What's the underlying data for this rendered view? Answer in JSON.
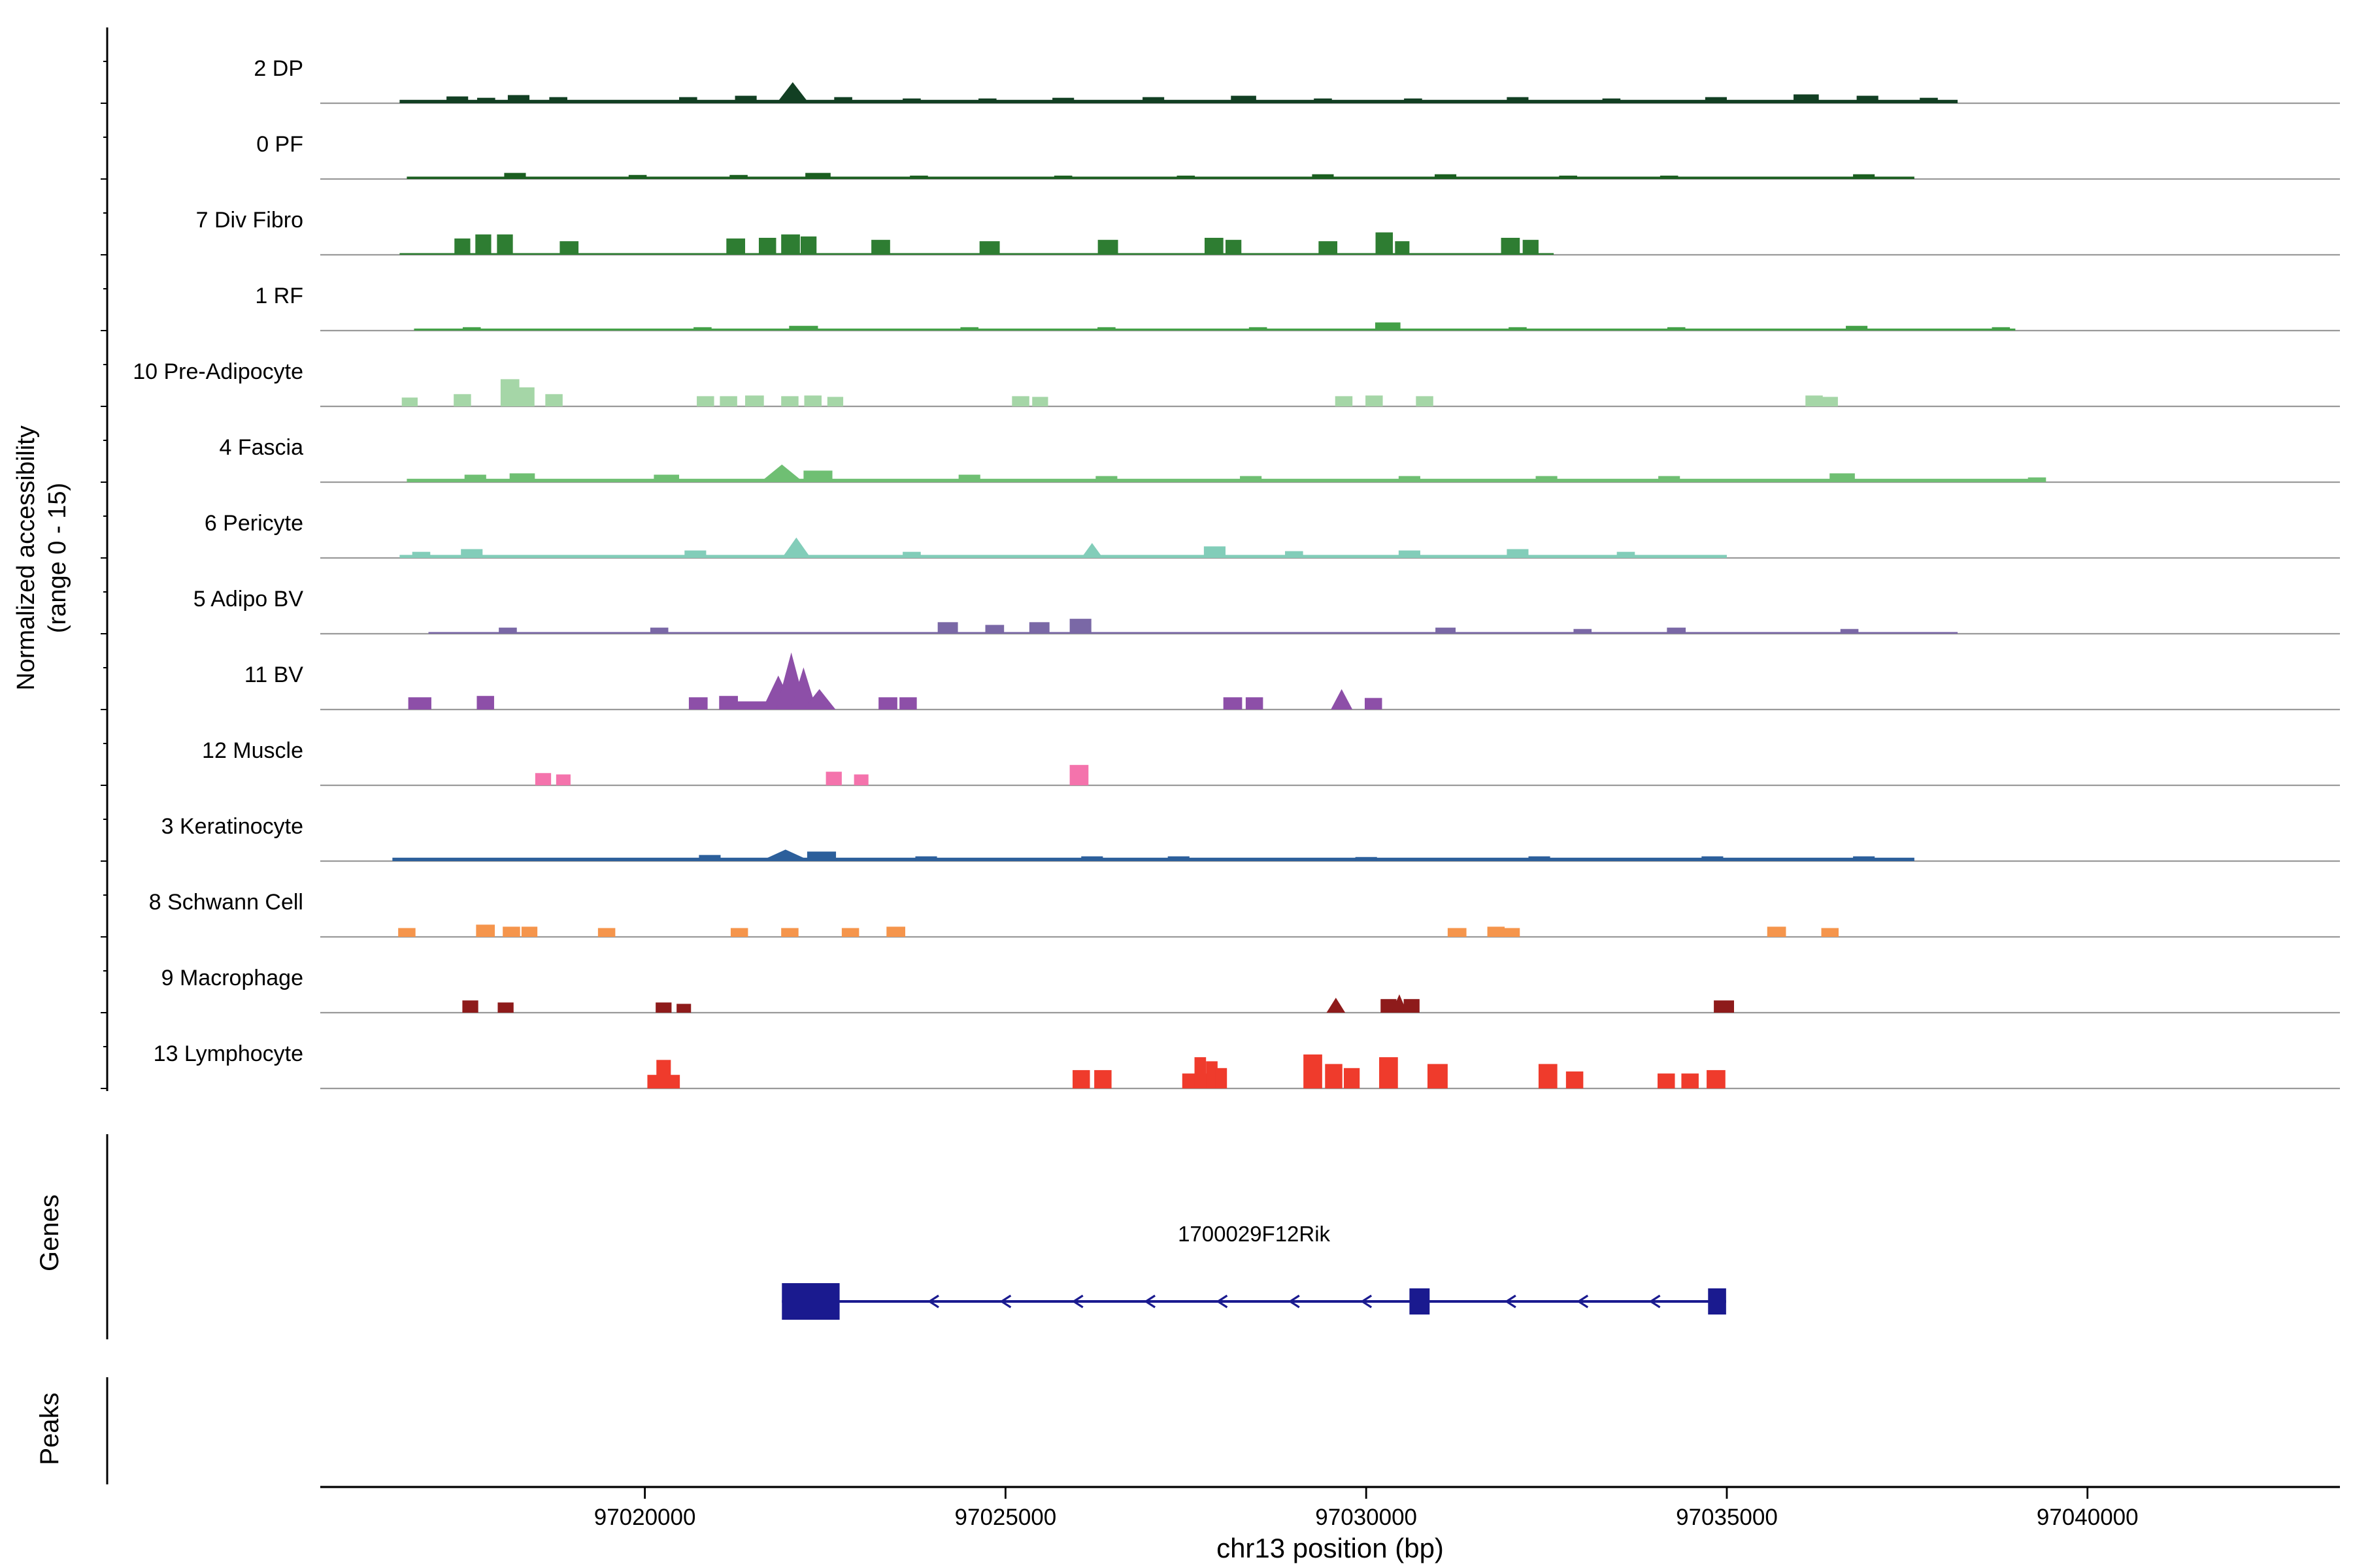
{
  "figure": {
    "y_axis_label_line1": "Normalized accessibility",
    "y_axis_label_line2": "(range 0 - 15)",
    "x_axis_label": "chr13 position (bp)",
    "genes_section_label": "Genes",
    "peaks_section_label": "Peaks"
  },
  "chart_data": {
    "type": "area",
    "title": "",
    "xlabel": "chr13 position (bp)",
    "ylabel": "Normalized accessibility (range 0 - 15)",
    "xlim": [
      97015500,
      97043500
    ],
    "xticks": [
      97020000,
      97025000,
      97030000,
      97035000,
      97040000
    ],
    "track_value_range": [
      0,
      15
    ],
    "legend_position": "left-track-labels",
    "grid": false,
    "tracks": [
      {
        "name": "2 DP",
        "color": "#123f23",
        "noise": [
          97016600,
          97038200,
          0.05
        ],
        "peaks": [
          [
            97017400,
            300,
            0.1
          ],
          [
            97017800,
            250,
            0.08
          ],
          [
            97018250,
            300,
            0.12
          ],
          [
            97018800,
            250,
            0.09
          ],
          [
            97020600,
            250,
            0.09
          ],
          [
            97021400,
            300,
            0.11
          ],
          [
            97022050,
            450,
            0.31,
            "t"
          ],
          [
            97022750,
            250,
            0.09
          ],
          [
            97023700,
            250,
            0.07
          ],
          [
            97024750,
            250,
            0.07
          ],
          [
            97025800,
            300,
            0.08
          ],
          [
            97027050,
            300,
            0.09
          ],
          [
            97028300,
            350,
            0.11
          ],
          [
            97029400,
            250,
            0.07
          ],
          [
            97030650,
            250,
            0.07
          ],
          [
            97032100,
            300,
            0.09
          ],
          [
            97033400,
            250,
            0.07
          ],
          [
            97034850,
            300,
            0.09
          ],
          [
            97036100,
            350,
            0.13
          ],
          [
            97036950,
            300,
            0.11
          ],
          [
            97037800,
            250,
            0.08
          ]
        ]
      },
      {
        "name": "0 PF",
        "color": "#1b5e20",
        "noise": [
          97016700,
          97037600,
          0.035
        ],
        "peaks": [
          [
            97018200,
            300,
            0.09
          ],
          [
            97019900,
            250,
            0.06
          ],
          [
            97021300,
            250,
            0.06
          ],
          [
            97022400,
            350,
            0.09
          ],
          [
            97023800,
            250,
            0.05
          ],
          [
            97025800,
            250,
            0.05
          ],
          [
            97027500,
            250,
            0.05
          ],
          [
            97029400,
            300,
            0.07
          ],
          [
            97031100,
            300,
            0.07
          ],
          [
            97032800,
            250,
            0.05
          ],
          [
            97034200,
            250,
            0.05
          ],
          [
            97036900,
            300,
            0.07
          ]
        ]
      },
      {
        "name": "7 Div Fibro",
        "color": "#2e7d32",
        "noise": [
          97016600,
          97032600,
          0.025
        ],
        "peaks": [
          [
            97017470,
            220,
            0.24
          ],
          [
            97017760,
            220,
            0.3
          ],
          [
            97018060,
            220,
            0.3
          ],
          [
            97018950,
            260,
            0.2
          ],
          [
            97021260,
            260,
            0.24
          ],
          [
            97021700,
            240,
            0.25
          ],
          [
            97022020,
            260,
            0.3
          ],
          [
            97022270,
            220,
            0.27
          ],
          [
            97023270,
            260,
            0.22
          ],
          [
            97024780,
            280,
            0.2
          ],
          [
            97026420,
            280,
            0.22
          ],
          [
            97027890,
            260,
            0.25
          ],
          [
            97028160,
            220,
            0.22
          ],
          [
            97029470,
            260,
            0.2
          ],
          [
            97030250,
            240,
            0.33
          ],
          [
            97030500,
            200,
            0.2
          ],
          [
            97032000,
            260,
            0.25
          ],
          [
            97032280,
            220,
            0.22
          ]
        ]
      },
      {
        "name": "1 RF",
        "color": "#43a047",
        "noise": [
          97016800,
          97039000,
          0.03
        ],
        "peaks": [
          [
            97017600,
            250,
            0.05
          ],
          [
            97020800,
            250,
            0.05
          ],
          [
            97022200,
            400,
            0.07
          ],
          [
            97024500,
            250,
            0.05
          ],
          [
            97026400,
            250,
            0.05
          ],
          [
            97028500,
            250,
            0.05
          ],
          [
            97030300,
            350,
            0.12
          ],
          [
            97032100,
            250,
            0.05
          ],
          [
            97034300,
            250,
            0.05
          ],
          [
            97036800,
            300,
            0.07
          ],
          [
            97038800,
            250,
            0.05
          ]
        ]
      },
      {
        "name": "10 Pre-Adipocyte",
        "color": "#a5d6a7",
        "noise": null,
        "peaks": [
          [
            97016740,
            220,
            0.13
          ],
          [
            97017470,
            240,
            0.18
          ],
          [
            97018130,
            260,
            0.4
          ],
          [
            97018360,
            220,
            0.28
          ],
          [
            97018740,
            240,
            0.18
          ],
          [
            97020840,
            240,
            0.15
          ],
          [
            97021160,
            240,
            0.15
          ],
          [
            97021520,
            260,
            0.16
          ],
          [
            97022010,
            240,
            0.15
          ],
          [
            97022330,
            240,
            0.16
          ],
          [
            97022640,
            220,
            0.14
          ],
          [
            97025210,
            240,
            0.15
          ],
          [
            97025480,
            220,
            0.14
          ],
          [
            97029690,
            240,
            0.15
          ],
          [
            97030110,
            240,
            0.16
          ],
          [
            97030810,
            240,
            0.15
          ],
          [
            97036210,
            240,
            0.16
          ],
          [
            97036430,
            220,
            0.14
          ]
        ]
      },
      {
        "name": "4 Fascia",
        "color": "#6fbf73",
        "noise": [
          97016700,
          97039200,
          0.05
        ],
        "peaks": [
          [
            97017650,
            300,
            0.11
          ],
          [
            97018300,
            350,
            0.13
          ],
          [
            97020300,
            350,
            0.11
          ],
          [
            97021900,
            600,
            0.26,
            "t"
          ],
          [
            97022400,
            400,
            0.17
          ],
          [
            97024500,
            300,
            0.11
          ],
          [
            97026400,
            300,
            0.09
          ],
          [
            97028400,
            300,
            0.09
          ],
          [
            97030600,
            300,
            0.09
          ],
          [
            97032500,
            300,
            0.09
          ],
          [
            97034200,
            300,
            0.09
          ],
          [
            97036600,
            350,
            0.13
          ],
          [
            97039300,
            250,
            0.07
          ]
        ]
      },
      {
        "name": "6 Pericyte",
        "color": "#82cdb9",
        "noise": [
          97016600,
          97035000,
          0.045
        ],
        "peaks": [
          [
            97016900,
            250,
            0.09
          ],
          [
            97017600,
            300,
            0.13
          ],
          [
            97020700,
            300,
            0.11
          ],
          [
            97022100,
            400,
            0.3,
            "t"
          ],
          [
            97023700,
            250,
            0.09
          ],
          [
            97026200,
            300,
            0.22,
            "t"
          ],
          [
            97027900,
            300,
            0.17
          ],
          [
            97029000,
            250,
            0.1
          ],
          [
            97030600,
            300,
            0.11
          ],
          [
            97032100,
            300,
            0.13
          ],
          [
            97033600,
            250,
            0.09
          ]
        ]
      },
      {
        "name": "5 Adipo BV",
        "color": "#7a68a6",
        "noise": [
          97017000,
          97038200,
          0.025
        ],
        "peaks": [
          [
            97018100,
            250,
            0.09
          ],
          [
            97020200,
            250,
            0.09
          ],
          [
            97024200,
            280,
            0.17
          ],
          [
            97024850,
            260,
            0.13
          ],
          [
            97025470,
            280,
            0.17
          ],
          [
            97026040,
            300,
            0.22
          ],
          [
            97031100,
            280,
            0.09
          ],
          [
            97033000,
            250,
            0.07
          ],
          [
            97034300,
            260,
            0.09
          ],
          [
            97036700,
            250,
            0.07
          ]
        ]
      },
      {
        "name": "11 BV",
        "color": "#8d4fa8",
        "noise": null,
        "peaks": [
          [
            97016880,
            320,
            0.18
          ],
          [
            97017790,
            240,
            0.2
          ],
          [
            97020740,
            260,
            0.18
          ],
          [
            97021160,
            260,
            0.2
          ],
          [
            97021700,
            900,
            0.12
          ],
          [
            97021850,
            450,
            0.5,
            "t"
          ],
          [
            97022030,
            420,
            0.84,
            "t"
          ],
          [
            97022200,
            360,
            0.62,
            "t"
          ],
          [
            97022420,
            450,
            0.3,
            "t"
          ],
          [
            97023370,
            260,
            0.18
          ],
          [
            97023650,
            240,
            0.18
          ],
          [
            97028150,
            260,
            0.18
          ],
          [
            97028450,
            240,
            0.18
          ],
          [
            97029660,
            300,
            0.3,
            "t"
          ],
          [
            97030100,
            240,
            0.17
          ]
        ]
      },
      {
        "name": "12 Muscle",
        "color": "#f473ac",
        "noise": null,
        "peaks": [
          [
            97018590,
            220,
            0.18
          ],
          [
            97018870,
            200,
            0.16
          ],
          [
            97022620,
            220,
            0.2
          ],
          [
            97023000,
            200,
            0.16
          ],
          [
            97026020,
            260,
            0.3
          ]
        ]
      },
      {
        "name": "3 Keratinocyte",
        "color": "#2c5f9b",
        "noise": [
          97016500,
          97037600,
          0.05
        ],
        "peaks": [
          [
            97020900,
            300,
            0.09
          ],
          [
            97021950,
            700,
            0.17,
            "t"
          ],
          [
            97022450,
            400,
            0.14
          ],
          [
            97023900,
            300,
            0.07
          ],
          [
            97026200,
            300,
            0.07
          ],
          [
            97027400,
            300,
            0.07
          ],
          [
            97030000,
            300,
            0.06
          ],
          [
            97032400,
            300,
            0.07
          ],
          [
            97034800,
            300,
            0.07
          ],
          [
            97036900,
            300,
            0.07
          ]
        ]
      },
      {
        "name": "8 Schwann Cell",
        "color": "#f5954c",
        "noise": null,
        "peaks": [
          [
            97016700,
            240,
            0.13
          ],
          [
            97017790,
            260,
            0.18
          ],
          [
            97018150,
            240,
            0.15
          ],
          [
            97018400,
            220,
            0.15
          ],
          [
            97019470,
            240,
            0.13
          ],
          [
            97021310,
            240,
            0.13
          ],
          [
            97022010,
            240,
            0.13
          ],
          [
            97022850,
            240,
            0.13
          ],
          [
            97023480,
            260,
            0.15
          ],
          [
            97031260,
            260,
            0.13
          ],
          [
            97031800,
            240,
            0.15
          ],
          [
            97032020,
            220,
            0.13
          ],
          [
            97035690,
            260,
            0.15
          ],
          [
            97036430,
            240,
            0.13
          ]
        ]
      },
      {
        "name": "9 Macrophage",
        "color": "#8e1b1b",
        "noise": null,
        "peaks": [
          [
            97017580,
            220,
            0.18
          ],
          [
            97018070,
            220,
            0.15
          ],
          [
            97020260,
            220,
            0.15
          ],
          [
            97020540,
            200,
            0.13
          ],
          [
            97029580,
            260,
            0.22,
            "t"
          ],
          [
            97030310,
            220,
            0.2
          ],
          [
            97030460,
            220,
            0.27,
            "t"
          ],
          [
            97030630,
            220,
            0.2
          ],
          [
            97034960,
            280,
            0.18
          ]
        ]
      },
      {
        "name": "13 Lymphocyte",
        "color": "#ef3b2c",
        "noise": null,
        "peaks": [
          [
            97020260,
            450,
            0.2
          ],
          [
            97020260,
            200,
            0.42
          ],
          [
            97026050,
            240,
            0.27
          ],
          [
            97026350,
            240,
            0.27
          ],
          [
            97027700,
            500,
            0.22
          ],
          [
            97027700,
            160,
            0.46
          ],
          [
            97027860,
            160,
            0.4
          ],
          [
            97027990,
            160,
            0.3
          ],
          [
            97029260,
            260,
            0.5
          ],
          [
            97029550,
            240,
            0.36
          ],
          [
            97029800,
            220,
            0.3
          ],
          [
            97030310,
            260,
            0.46
          ],
          [
            97030990,
            280,
            0.36
          ],
          [
            97032520,
            260,
            0.36
          ],
          [
            97032890,
            240,
            0.25
          ],
          [
            97034160,
            240,
            0.22
          ],
          [
            97034490,
            240,
            0.22
          ],
          [
            97034850,
            260,
            0.27
          ]
        ]
      }
    ],
    "gene": {
      "name": "1700029F12Rik",
      "chrom": "chr13",
      "start": 97021900,
      "end": 97034990,
      "strand": "-",
      "color": "#1a1a8f",
      "exons": [
        [
          97021900,
          97022700
        ],
        [
          97030600,
          97030880
        ],
        [
          97034740,
          97034990
        ]
      ]
    },
    "peaks": []
  }
}
